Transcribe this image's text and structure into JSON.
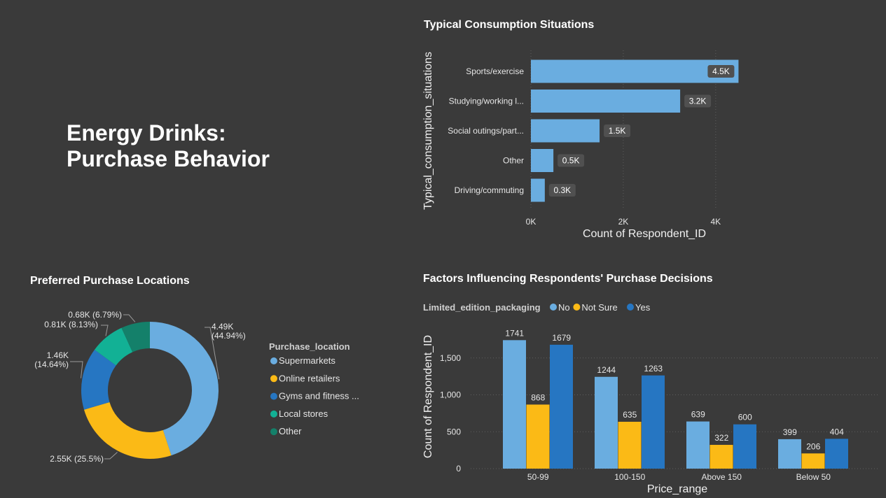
{
  "dashboard": {
    "title_line1": "Energy Drinks:",
    "title_line2": "Purchase Behavior"
  },
  "colors": {
    "background": "#3a3a3a",
    "light_blue": "#6aade0",
    "yellow": "#fbba16",
    "blue": "#2676c2",
    "teal": "#12b195",
    "dark_teal": "#14806a",
    "label_box": "#505050",
    "grid": "#5e5e5e"
  },
  "chart_data": [
    {
      "id": "consumption",
      "type": "bar",
      "orientation": "horizontal",
      "title": "Typical Consumption Situations",
      "xlabel": "Count of Respondent_ID",
      "ylabel": "Typical_consumption_situations",
      "categories": [
        "Sports/exercise",
        "Studying/working l...",
        "Social outings/part...",
        "Other",
        "Driving/commuting"
      ],
      "values": [
        4494,
        3231,
        1487,
        487,
        301
      ],
      "data_labels": [
        "4.5K",
        "3.2K",
        "1.5K",
        "0.5K",
        "0.3K"
      ],
      "xticks": [
        "0K",
        "2K",
        "4K"
      ],
      "xlim": [
        0,
        4700
      ],
      "grid": true
    },
    {
      "id": "locations",
      "type": "pie",
      "subtype": "donut",
      "title": "Preferred Purchase Locations",
      "legend_title": "Purchase_location",
      "legend_position": "right",
      "categories": [
        "Supermarkets",
        "Online retailers",
        "Gyms and fitness ...",
        "Local stores",
        "Other"
      ],
      "values": [
        44.94,
        25.5,
        14.64,
        8.13,
        6.79
      ],
      "data_labels": [
        [
          "4.49K",
          "(44.94%)"
        ],
        [
          "2.55K (25.5%)"
        ],
        [
          "1.46K",
          "(14.64%)"
        ],
        [
          "0.81K (8.13%)"
        ],
        [
          "0.68K (6.79%)"
        ]
      ]
    },
    {
      "id": "factors",
      "type": "bar",
      "subtype": "clustered",
      "title": "Factors Influencing Respondents' Purchase Decisions",
      "legend_title": "Limited_edition_packaging",
      "legend_position": "top-left",
      "xlabel": "Price_range",
      "ylabel": "Count of Respondent_ID",
      "categories": [
        "50-99",
        "100-150",
        "Above 150",
        "Below 50"
      ],
      "series": [
        {
          "name": "No",
          "values": [
            1741,
            1244,
            639,
            399
          ]
        },
        {
          "name": "Not Sure",
          "values": [
            868,
            635,
            322,
            206
          ]
        },
        {
          "name": "Yes",
          "values": [
            1679,
            1263,
            600,
            404
          ]
        }
      ],
      "yticks": [
        "0",
        "500",
        "1,000",
        "1,500"
      ],
      "ylim": [
        0,
        1800
      ],
      "grid": true
    }
  ]
}
